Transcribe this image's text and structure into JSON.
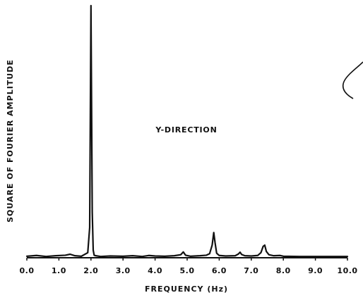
{
  "chart_data": {
    "type": "line",
    "title": "",
    "annotation": "Y-DIRECTION",
    "xlabel": "FREQUENCY (Hz)",
    "ylabel": "SQUARE OF FOURIER AMPLITUDE",
    "xlim": [
      0,
      10
    ],
    "ylim": [
      0,
      100
    ],
    "x_ticks": [
      "0.0",
      "1.0",
      "2.0",
      "3.0",
      "4.0",
      "5.0",
      "6.0",
      "7.0",
      "8.0",
      "9.0",
      "10.0"
    ],
    "y_ticks": [],
    "grid": false,
    "legend": "none",
    "line_color": "#111111",
    "series": [
      {
        "x": [
          0.0,
          0.3,
          0.6,
          0.9,
          1.2,
          1.35,
          1.5,
          1.7,
          1.9,
          1.96,
          2.0,
          2.04,
          2.07,
          2.1,
          2.15,
          2.3,
          2.6,
          3.0,
          3.3,
          3.6,
          3.8,
          4.0,
          4.3,
          4.6,
          4.8,
          4.88,
          4.95,
          5.1,
          5.4,
          5.6,
          5.7,
          5.78,
          5.83,
          5.87,
          5.92,
          6.0,
          6.2,
          6.5,
          6.6,
          6.65,
          6.7,
          6.8,
          7.0,
          7.2,
          7.3,
          7.37,
          7.42,
          7.47,
          7.55,
          7.7,
          7.9,
          8.0,
          8.5,
          9.0,
          9.5,
          10.0
        ],
        "y": [
          0.6,
          0.9,
          0.5,
          0.8,
          1.0,
          1.4,
          0.8,
          0.6,
          2.0,
          12.0,
          100.0,
          18.0,
          3.0,
          1.0,
          0.8,
          0.5,
          0.7,
          0.6,
          0.8,
          0.5,
          0.9,
          0.7,
          0.6,
          0.8,
          1.2,
          2.3,
          1.0,
          0.6,
          0.8,
          1.0,
          1.6,
          5.0,
          10.0,
          6.0,
          1.8,
          0.9,
          0.7,
          0.8,
          1.5,
          2.2,
          1.3,
          0.8,
          0.7,
          0.9,
          2.0,
          4.5,
          5.0,
          2.5,
          1.2,
          0.8,
          0.9,
          0.6,
          0.5,
          0.5,
          0.5,
          0.5
        ]
      }
    ]
  }
}
